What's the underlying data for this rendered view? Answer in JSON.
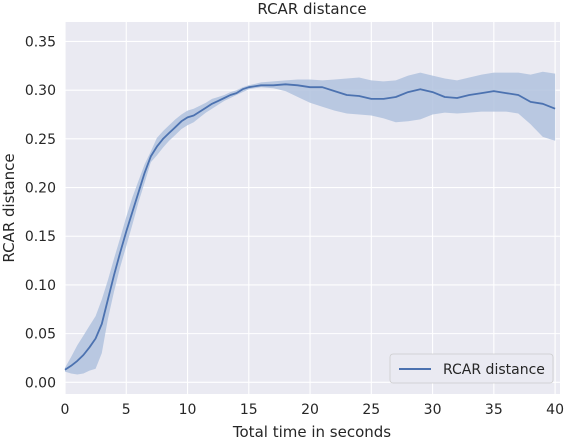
{
  "chart_data": {
    "type": "line",
    "title": "RCAR distance",
    "xlabel": "Total time in seconds",
    "ylabel": "RCAR distance",
    "xlim": [
      0,
      40.4
    ],
    "ylim": [
      -0.012,
      0.37
    ],
    "xticks": [
      0,
      5,
      10,
      15,
      20,
      25,
      30,
      35,
      40
    ],
    "yticks": [
      0.0,
      0.05,
      0.1,
      0.15,
      0.2,
      0.25,
      0.3,
      0.35
    ],
    "xtick_labels": [
      "0",
      "5",
      "10",
      "15",
      "20",
      "25",
      "30",
      "35",
      "40"
    ],
    "ytick_labels": [
      "0.00",
      "0.05",
      "0.10",
      "0.15",
      "0.20",
      "0.25",
      "0.30",
      "0.35"
    ],
    "grid": true,
    "legend_position": "lower-right",
    "series": [
      {
        "name": "RCAR distance",
        "color": "#4c72b0",
        "band_color": "#b0c2de",
        "x": [
          0,
          0.5,
          1,
          1.5,
          2,
          2.5,
          3,
          3.5,
          4,
          4.5,
          5,
          5.5,
          6,
          6.5,
          7,
          7.5,
          8,
          8.5,
          9,
          9.5,
          10,
          10.5,
          11,
          11.5,
          12,
          12.5,
          13,
          13.5,
          14,
          14.5,
          15,
          16,
          17,
          18,
          19,
          20,
          21,
          22,
          23,
          24,
          25,
          26,
          27,
          28,
          29,
          30,
          31,
          32,
          33,
          34,
          35,
          36,
          37,
          38,
          39,
          40
        ],
        "y": [
          0.013,
          0.017,
          0.022,
          0.028,
          0.036,
          0.045,
          0.06,
          0.085,
          0.11,
          0.133,
          0.155,
          0.175,
          0.195,
          0.215,
          0.232,
          0.242,
          0.25,
          0.256,
          0.262,
          0.268,
          0.272,
          0.274,
          0.278,
          0.282,
          0.286,
          0.289,
          0.292,
          0.295,
          0.297,
          0.301,
          0.303,
          0.305,
          0.305,
          0.306,
          0.305,
          0.303,
          0.303,
          0.299,
          0.295,
          0.294,
          0.291,
          0.291,
          0.293,
          0.298,
          0.301,
          0.298,
          0.293,
          0.292,
          0.295,
          0.297,
          0.299,
          0.297,
          0.295,
          0.288,
          0.286,
          0.281
        ],
        "lower": [
          0.011,
          0.009,
          0.008,
          0.009,
          0.012,
          0.014,
          0.03,
          0.065,
          0.093,
          0.118,
          0.14,
          0.162,
          0.185,
          0.205,
          0.226,
          0.233,
          0.241,
          0.248,
          0.254,
          0.26,
          0.264,
          0.267,
          0.272,
          0.277,
          0.281,
          0.285,
          0.289,
          0.292,
          0.295,
          0.298,
          0.301,
          0.303,
          0.302,
          0.299,
          0.293,
          0.287,
          0.283,
          0.279,
          0.276,
          0.275,
          0.274,
          0.271,
          0.267,
          0.268,
          0.27,
          0.275,
          0.277,
          0.276,
          0.277,
          0.278,
          0.278,
          0.278,
          0.276,
          0.265,
          0.252,
          0.248
        ],
        "upper": [
          0.015,
          0.026,
          0.038,
          0.048,
          0.058,
          0.068,
          0.085,
          0.105,
          0.127,
          0.148,
          0.17,
          0.19,
          0.207,
          0.224,
          0.237,
          0.251,
          0.258,
          0.264,
          0.27,
          0.275,
          0.279,
          0.281,
          0.284,
          0.287,
          0.291,
          0.293,
          0.295,
          0.298,
          0.3,
          0.303,
          0.305,
          0.308,
          0.309,
          0.31,
          0.311,
          0.311,
          0.31,
          0.311,
          0.312,
          0.313,
          0.31,
          0.309,
          0.31,
          0.315,
          0.318,
          0.315,
          0.312,
          0.31,
          0.313,
          0.316,
          0.318,
          0.318,
          0.318,
          0.316,
          0.319,
          0.317
        ]
      }
    ]
  }
}
